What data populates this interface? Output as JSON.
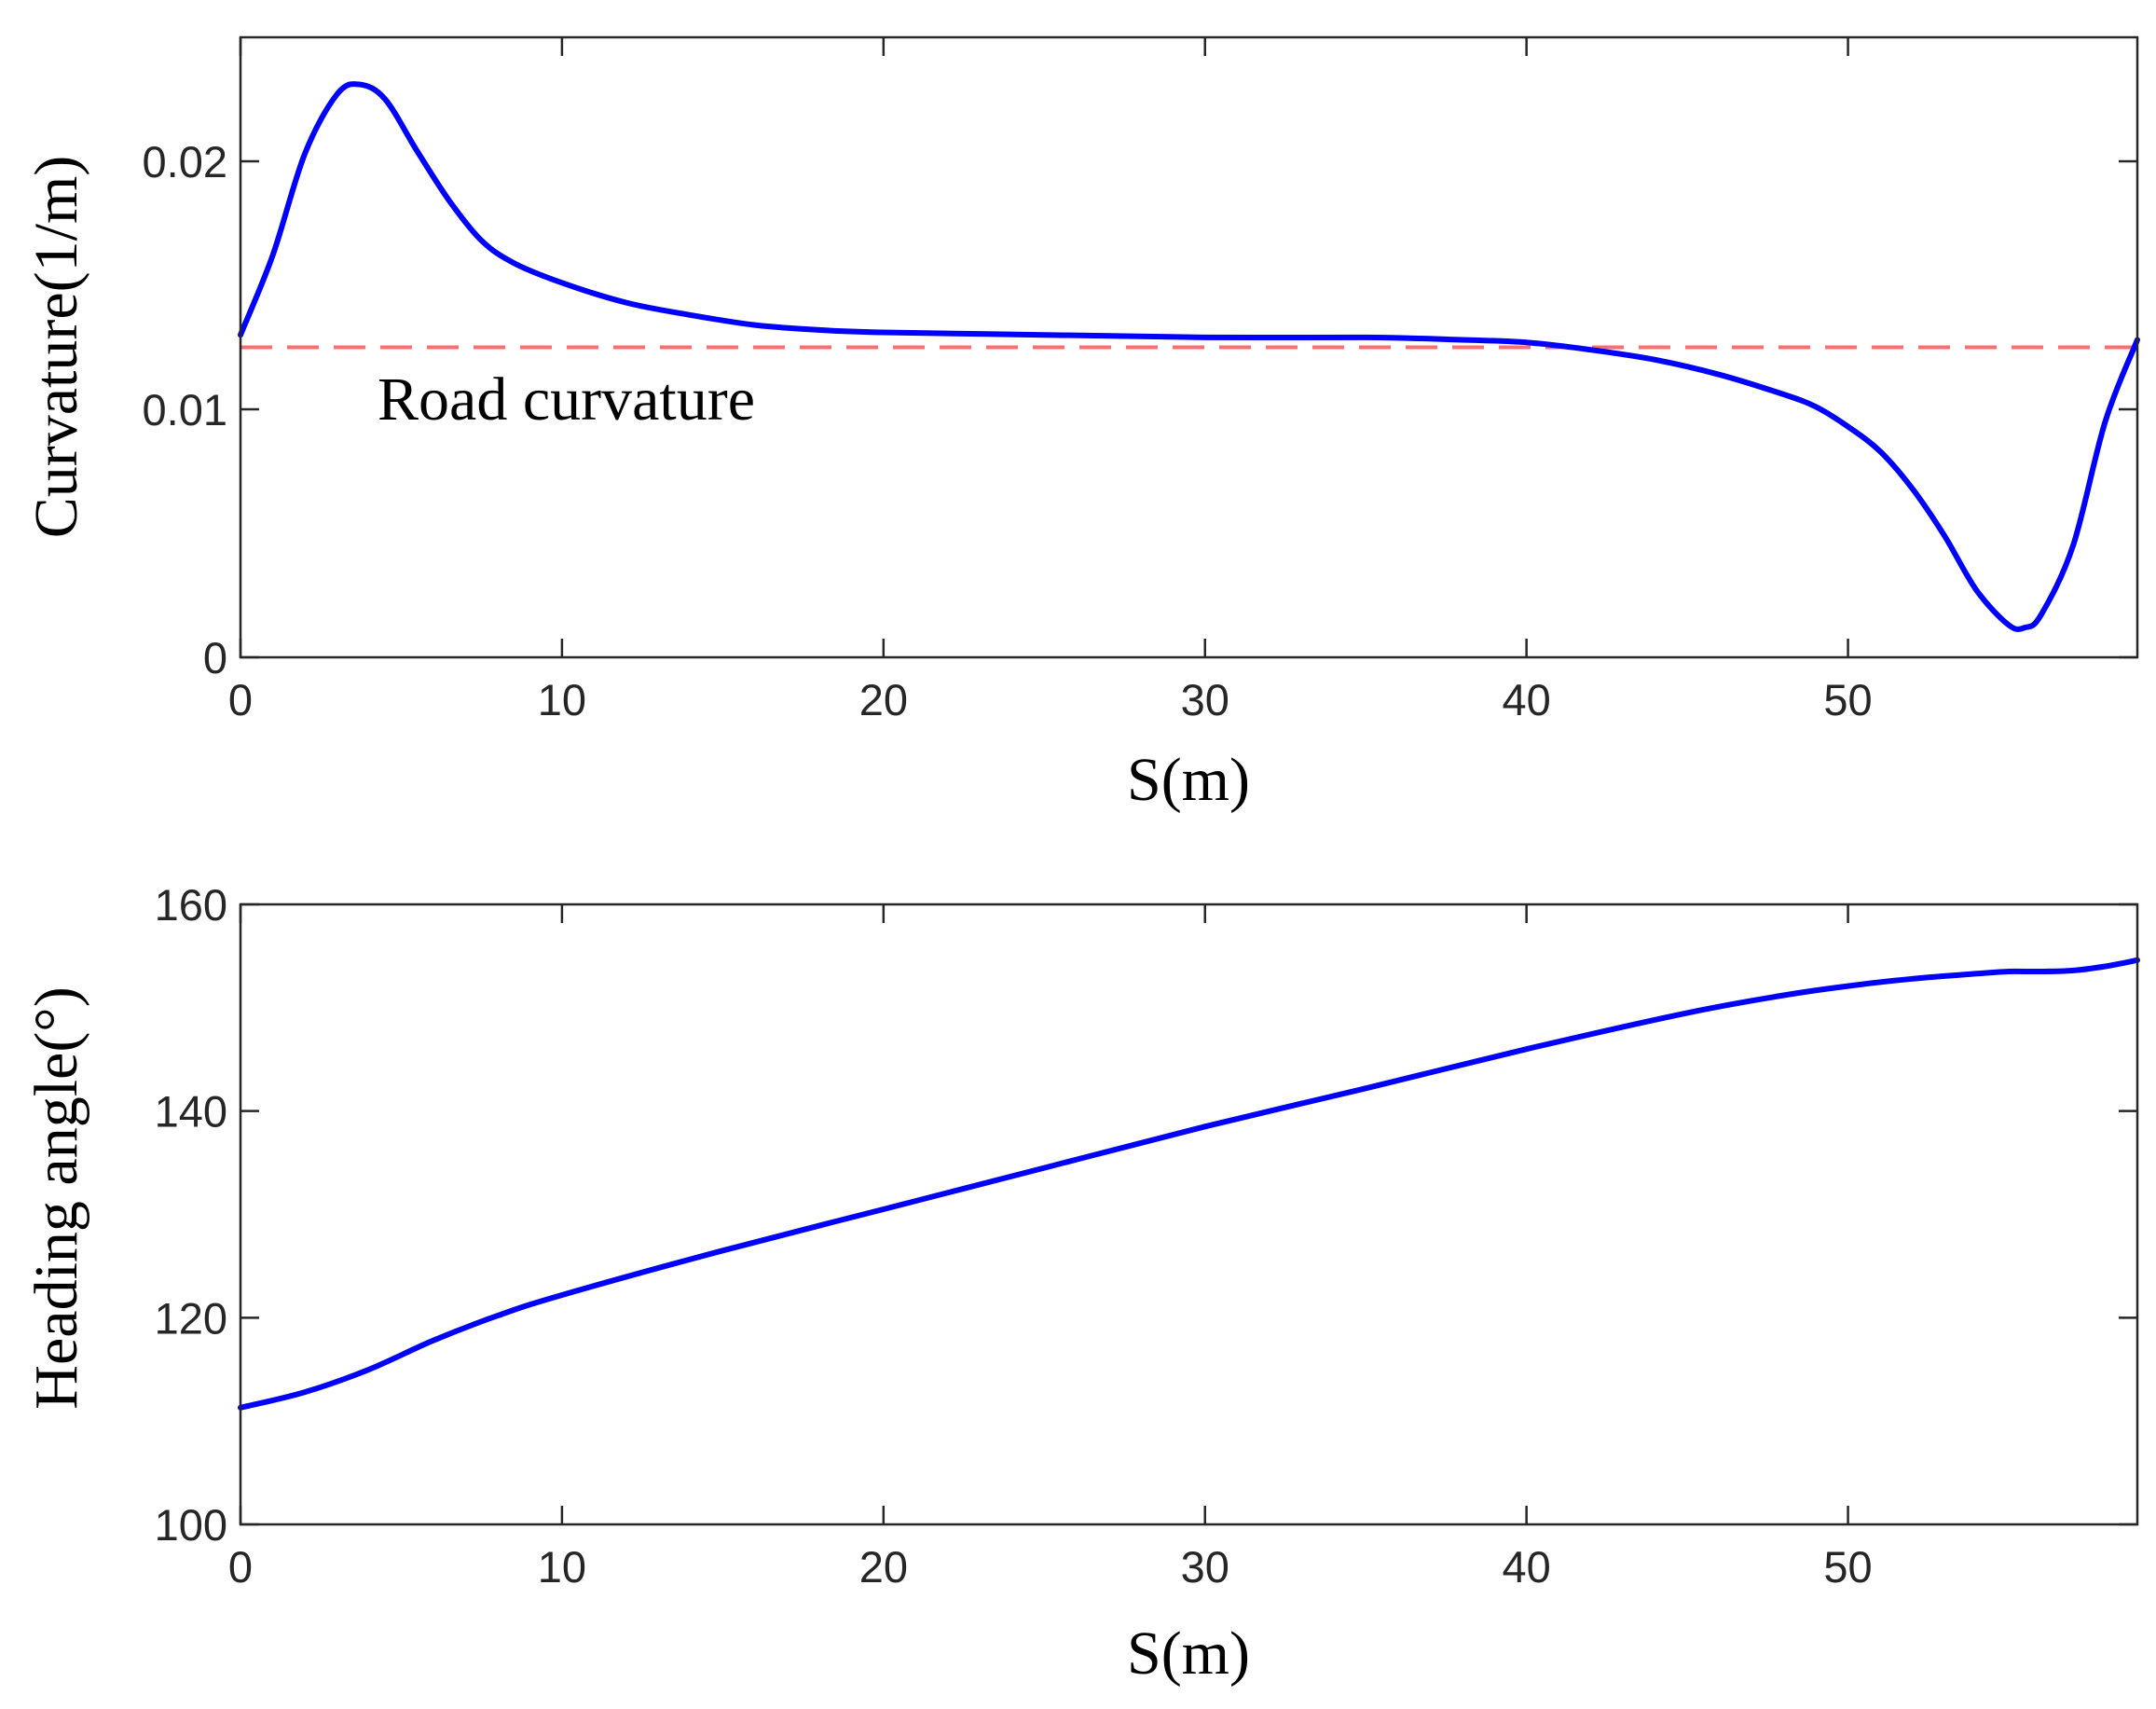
{
  "chart_data": [
    {
      "type": "line",
      "xlabel": "S(m)",
      "ylabel": "Curvature(1/m)",
      "xlim": [
        0,
        59
      ],
      "ylim": [
        0,
        0.025
      ],
      "xticks": [
        0,
        10,
        20,
        30,
        40,
        50
      ],
      "xtick_labels": [
        "0",
        "10",
        "20",
        "30",
        "40",
        "50"
      ],
      "yticks": [
        0,
        0.01,
        0.02
      ],
      "ytick_labels": [
        "0",
        "0.01",
        "0.02"
      ],
      "grid": false,
      "reference_line": {
        "y": 0.0125,
        "label": "Road curvature",
        "color": "#ff6f6f",
        "style": "dashed"
      },
      "series": [
        {
          "color": "#0000ff",
          "x": [
            0,
            1,
            2,
            3,
            3.7,
            4.5,
            5.5,
            6.5,
            7.5,
            8.5,
            10,
            12,
            14,
            16,
            18,
            20,
            25,
            30,
            35,
            38,
            40,
            42,
            44,
            46,
            48,
            49,
            50,
            51,
            52,
            53,
            54,
            55,
            55.5,
            56,
            57,
            58,
            59
          ],
          "y": [
            0.013,
            0.0162,
            0.0203,
            0.0227,
            0.0231,
            0.0225,
            0.0204,
            0.0184,
            0.0168,
            0.0159,
            0.0151,
            0.0143,
            0.0138,
            0.0134,
            0.0132,
            0.0131,
            0.013,
            0.0129,
            0.0129,
            0.0128,
            0.0127,
            0.0124,
            0.012,
            0.0114,
            0.0106,
            0.0101,
            0.0093,
            0.0083,
            0.0068,
            0.0049,
            0.0027,
            0.0013,
            0.0012,
            0.0017,
            0.0045,
            0.0095,
            0.0128
          ]
        }
      ]
    },
    {
      "type": "line",
      "xlabel": "S(m)",
      "ylabel": "Heading angle(°)",
      "xlim": [
        0,
        59
      ],
      "ylim": [
        100,
        160
      ],
      "xticks": [
        0,
        10,
        20,
        30,
        40,
        50
      ],
      "xtick_labels": [
        "0",
        "10",
        "20",
        "30",
        "40",
        "50"
      ],
      "yticks": [
        100,
        120,
        140,
        160
      ],
      "ytick_labels": [
        "100",
        "120",
        "140",
        "160"
      ],
      "grid": false,
      "series": [
        {
          "color": "#0000ff",
          "x": [
            0,
            2,
            4,
            6,
            8,
            10,
            15,
            20,
            25,
            30,
            35,
            40,
            45,
            48,
            50,
            52,
            54,
            55,
            56,
            57,
            58,
            59
          ],
          "y": [
            111.3,
            112.8,
            115.0,
            117.8,
            120.2,
            122.2,
            126.5,
            130.5,
            134.5,
            138.5,
            142.2,
            146.0,
            149.5,
            151.2,
            152.1,
            152.8,
            153.3,
            153.5,
            153.5,
            153.6,
            154.0,
            154.6
          ]
        }
      ]
    }
  ]
}
